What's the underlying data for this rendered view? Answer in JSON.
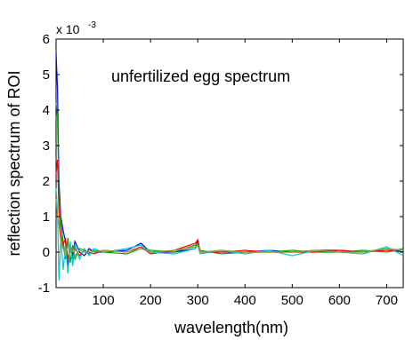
{
  "chart_data": {
    "type": "line",
    "xlabel": "wavelength(nm)",
    "ylabel": "reflection spectrum of ROI",
    "annotation": "unfertilized egg spectrum",
    "y_exponent_prefix": "x 10",
    "y_exponent_power": "-3",
    "xlim": [
      0,
      735
    ],
    "ylim": [
      -1,
      6
    ],
    "xticks": [
      100,
      200,
      300,
      400,
      500,
      600,
      700
    ],
    "yticks": [
      -1,
      0,
      1,
      2,
      3,
      4,
      5,
      6
    ],
    "grid": false,
    "series": [
      {
        "color": "#0000ff",
        "x": [
          0,
          3,
          6,
          10,
          15,
          20,
          25,
          30,
          35,
          40,
          50,
          60,
          70,
          80,
          100,
          150,
          180,
          200,
          250,
          295,
          300,
          305,
          350,
          400,
          450,
          500,
          550,
          600,
          650,
          700,
          735
        ],
        "values": [
          5.6,
          4.6,
          2.0,
          1.0,
          0.6,
          0.3,
          -0.4,
          0.2,
          -0.1,
          0.3,
          0.0,
          -0.1,
          0.1,
          0.0,
          0.0,
          0.05,
          0.25,
          0.0,
          0.0,
          0.1,
          0.35,
          0.0,
          0.0,
          0.0,
          0.05,
          0.0,
          0.05,
          0.05,
          0.0,
          0.1,
          0.0
        ]
      },
      {
        "color": "#00aa00",
        "x": [
          0,
          3,
          6,
          10,
          15,
          20,
          25,
          30,
          35,
          40,
          50,
          60,
          70,
          80,
          100,
          150,
          180,
          200,
          250,
          295,
          300,
          305,
          350,
          400,
          450,
          500,
          550,
          600,
          650,
          700,
          735
        ],
        "values": [
          4.2,
          3.8,
          1.6,
          0.9,
          0.3,
          -0.2,
          0.4,
          -0.3,
          0.2,
          -0.2,
          0.1,
          0.05,
          -0.05,
          0.05,
          0.0,
          -0.05,
          0.1,
          0.05,
          0.0,
          0.2,
          0.25,
          0.05,
          -0.05,
          0.0,
          0.0,
          0.05,
          0.0,
          0.0,
          0.05,
          0.0,
          0.1
        ]
      },
      {
        "color": "#ff0000",
        "x": [
          0,
          3,
          6,
          10,
          15,
          20,
          25,
          30,
          35,
          40,
          50,
          60,
          70,
          80,
          100,
          150,
          180,
          200,
          250,
          295,
          300,
          305,
          350,
          400,
          450,
          500,
          550,
          600,
          650,
          700,
          735
        ],
        "values": [
          2.2,
          2.6,
          1.2,
          0.5,
          0.2,
          0.4,
          -0.2,
          0.1,
          -0.2,
          0.1,
          -0.1,
          0.05,
          0.0,
          -0.05,
          0.05,
          0.0,
          0.15,
          -0.05,
          0.05,
          0.25,
          0.35,
          0.0,
          0.0,
          0.05,
          0.0,
          0.0,
          0.0,
          0.05,
          0.0,
          0.05,
          0.0
        ]
      },
      {
        "color": "#00cccc",
        "x": [
          0,
          3,
          6,
          10,
          15,
          20,
          25,
          30,
          35,
          40,
          50,
          60,
          70,
          80,
          100,
          150,
          180,
          200,
          250,
          295,
          300,
          305,
          350,
          400,
          450,
          500,
          550,
          600,
          650,
          700,
          735
        ],
        "values": [
          1.8,
          1.2,
          -0.8,
          0.4,
          -0.5,
          0.2,
          -0.6,
          0.3,
          -0.4,
          0.2,
          -0.2,
          0.1,
          -0.1,
          0.1,
          0.0,
          0.1,
          0.2,
          0.0,
          -0.05,
          0.1,
          0.2,
          -0.05,
          0.05,
          -0.05,
          0.05,
          -0.1,
          0.05,
          0.0,
          -0.05,
          0.15,
          -0.1
        ]
      },
      {
        "color": "#999933",
        "x": [
          0,
          3,
          6,
          10,
          15,
          20,
          25,
          30,
          35,
          40,
          50,
          60,
          70,
          80,
          100,
          150,
          180,
          200,
          250,
          295,
          300,
          305,
          350,
          400,
          450,
          500,
          550,
          600,
          650,
          700,
          735
        ],
        "values": [
          1.5,
          1.0,
          0.8,
          0.3,
          0.1,
          -0.1,
          0.2,
          0.0,
          0.1,
          -0.1,
          0.05,
          0.0,
          0.05,
          0.0,
          0.05,
          0.0,
          0.1,
          0.0,
          0.05,
          0.15,
          0.2,
          0.0,
          0.05,
          0.0,
          0.0,
          0.0,
          0.05,
          0.0,
          0.0,
          0.1,
          0.05
        ]
      }
    ]
  }
}
